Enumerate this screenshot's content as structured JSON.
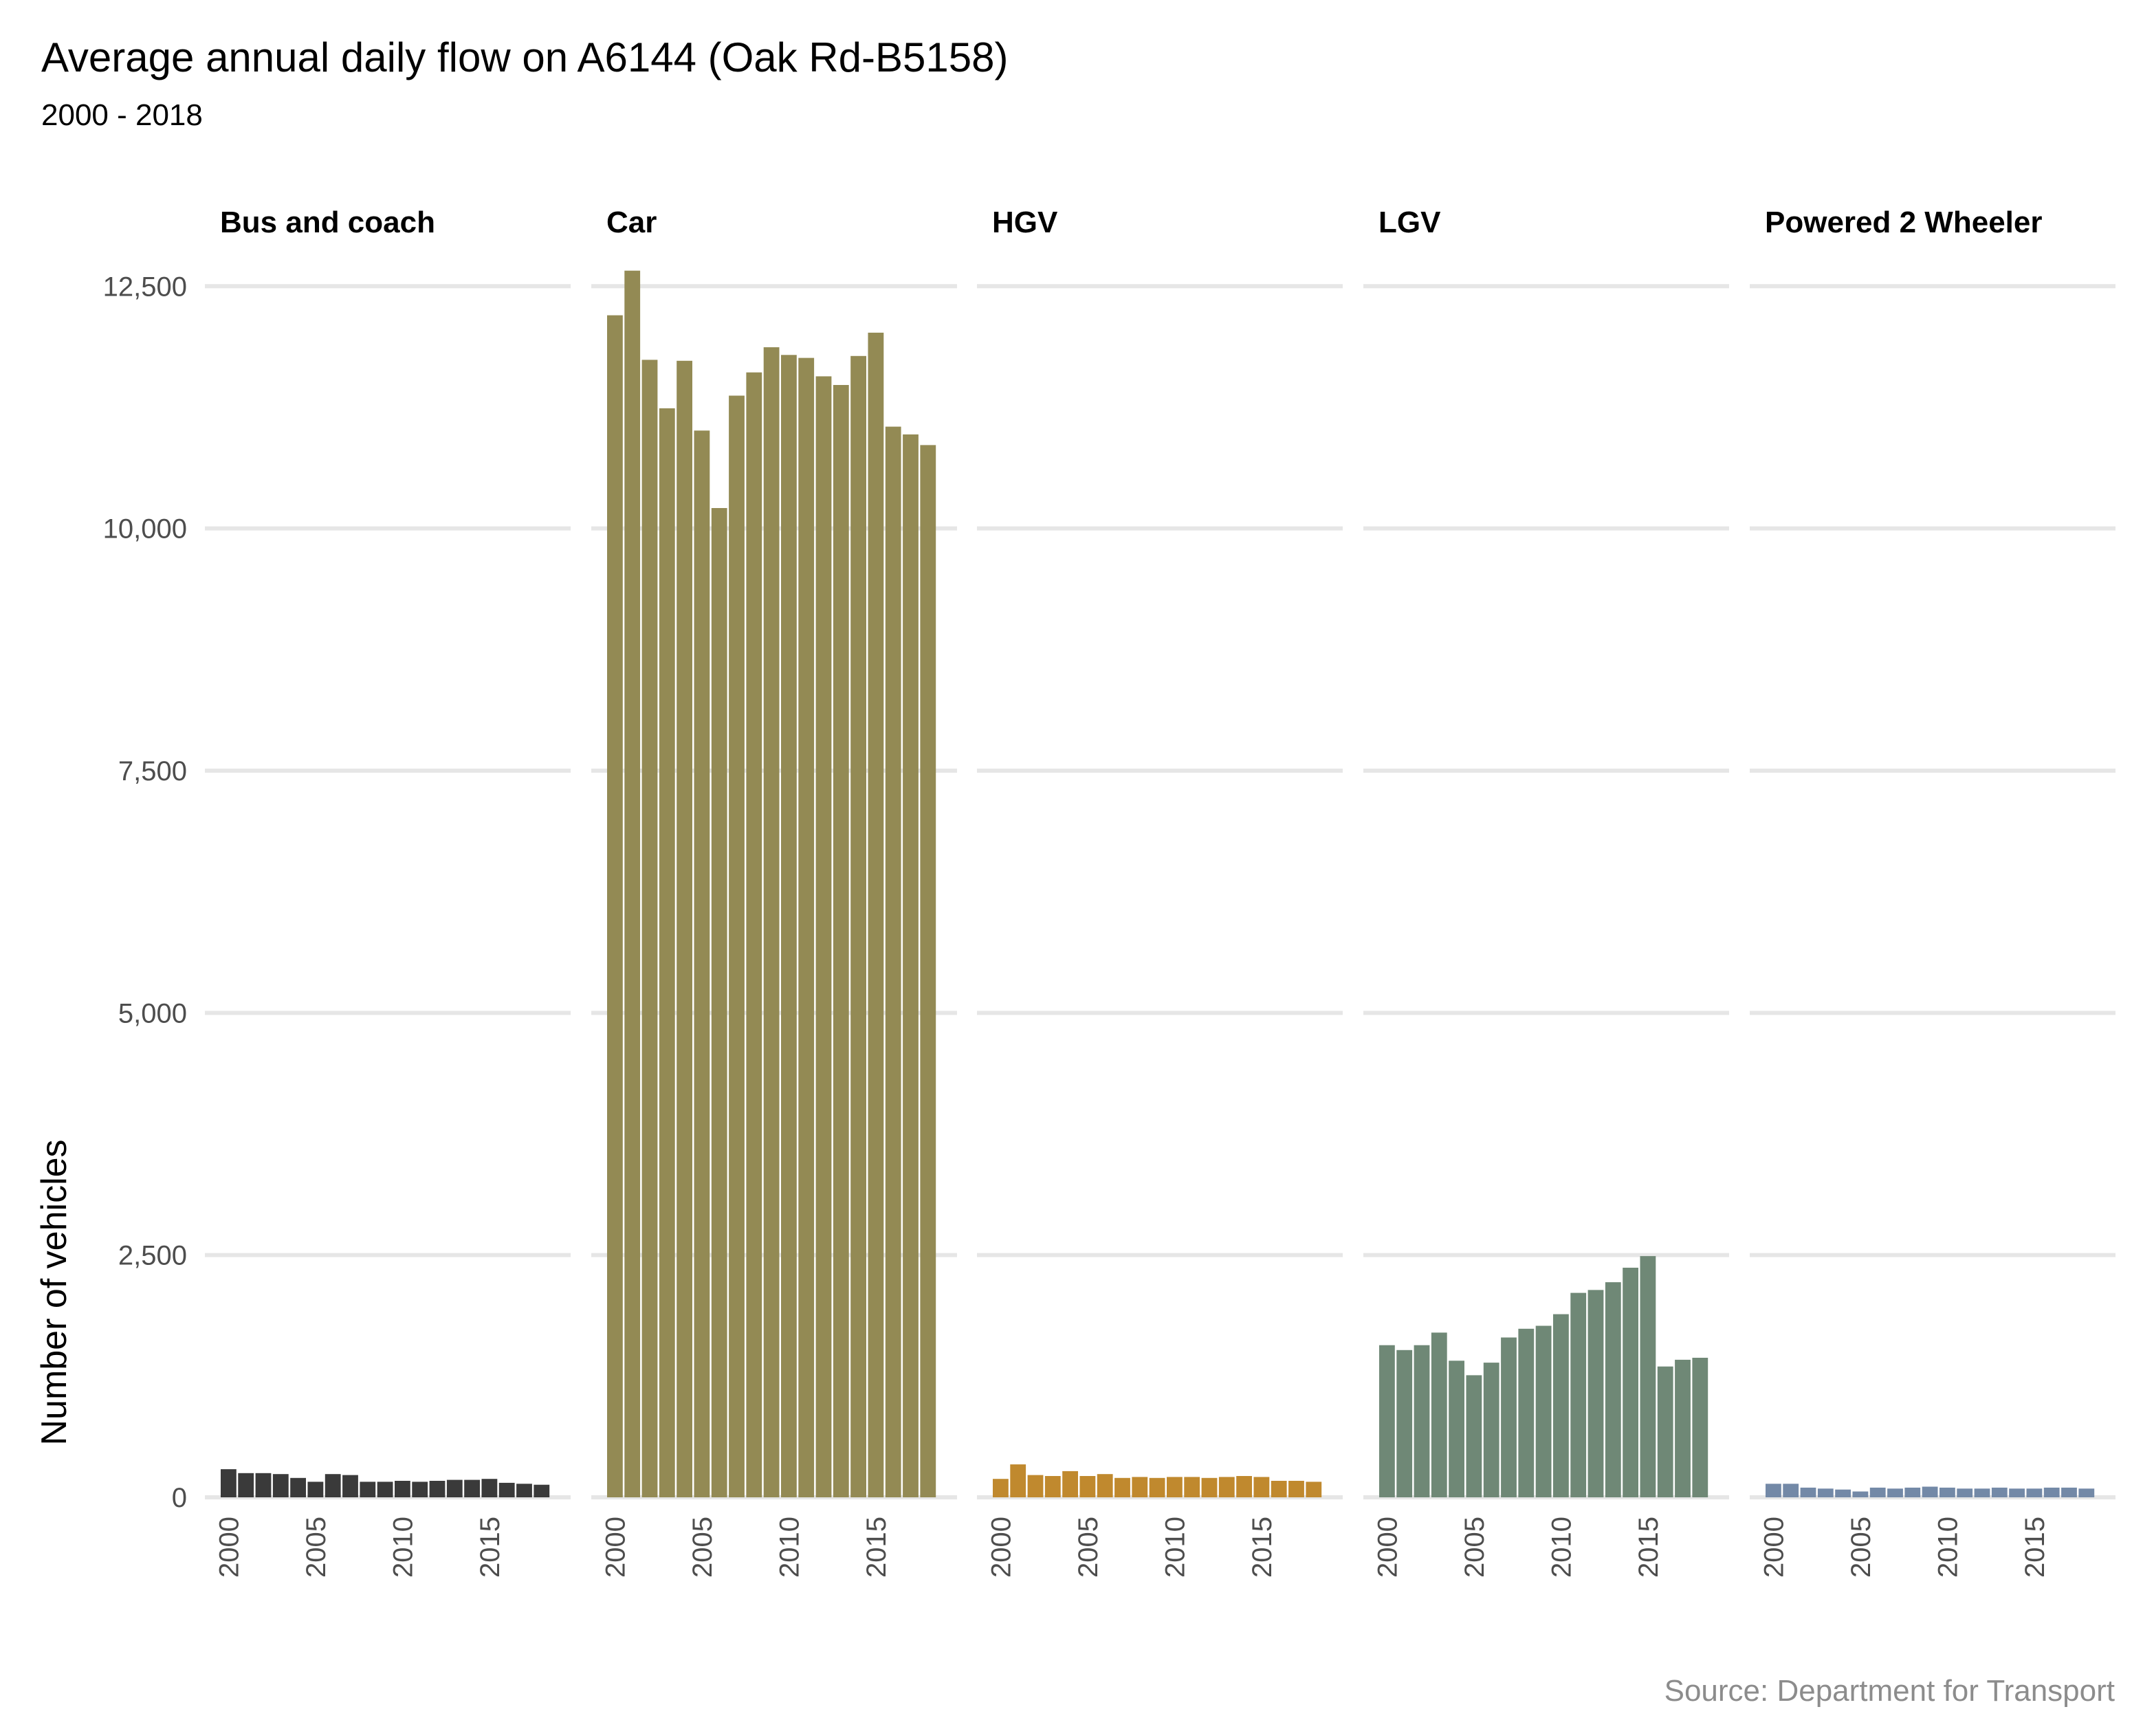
{
  "chart_data": {
    "type": "bar",
    "title": "Average annual daily flow on A6144 (Oak Rd-B5158)",
    "subtitle": "2000 - 2018",
    "ylabel": "Number of vehicles",
    "xlabel": "",
    "caption": "Source: Department for Transport",
    "ylim": [
      0,
      12800
    ],
    "yticks": [
      0,
      2500,
      5000,
      7500,
      10000,
      12500
    ],
    "ytick_labels": [
      "0",
      "2,500",
      "5,000",
      "7,500",
      "10,000",
      "12,500"
    ],
    "xticks": [
      2000,
      2005,
      2010,
      2015
    ],
    "xtick_labels": [
      "2000",
      "2005",
      "2010",
      "2015"
    ],
    "x": [
      2000,
      2001,
      2002,
      2003,
      2004,
      2005,
      2006,
      2007,
      2008,
      2009,
      2010,
      2011,
      2012,
      2013,
      2014,
      2015,
      2016,
      2017,
      2018
    ],
    "grid": true,
    "legend": "none",
    "facets": [
      {
        "name": "Bus and coach",
        "color": "#3a3a3a",
        "values": [
          290,
          250,
          250,
          240,
          200,
          160,
          240,
          230,
          160,
          160,
          170,
          160,
          170,
          180,
          180,
          190,
          150,
          140,
          130
        ]
      },
      {
        "name": "Car",
        "color": "#938a54",
        "values": [
          12200,
          12660,
          11740,
          11240,
          11730,
          11010,
          10210,
          11370,
          11610,
          11870,
          11790,
          11760,
          11570,
          11480,
          11780,
          12020,
          11050,
          10970,
          10860
        ]
      },
      {
        "name": "HGV",
        "color": "#c0892e",
        "values": [
          190,
          340,
          230,
          220,
          270,
          220,
          240,
          200,
          210,
          200,
          210,
          210,
          200,
          210,
          220,
          210,
          170,
          170,
          160
        ]
      },
      {
        "name": "LGV",
        "color": "#6f8876",
        "values": [
          1570,
          1520,
          1570,
          1700,
          1410,
          1260,
          1390,
          1650,
          1740,
          1770,
          1890,
          2110,
          2140,
          2220,
          2370,
          2490,
          1350,
          1420,
          1440
        ]
      },
      {
        "name": "Powered 2 Wheeler",
        "color": "#7389a7",
        "values": [
          140,
          140,
          100,
          90,
          80,
          60,
          100,
          90,
          100,
          110,
          100,
          90,
          90,
          100,
          90,
          90,
          100,
          100,
          90
        ]
      }
    ]
  }
}
